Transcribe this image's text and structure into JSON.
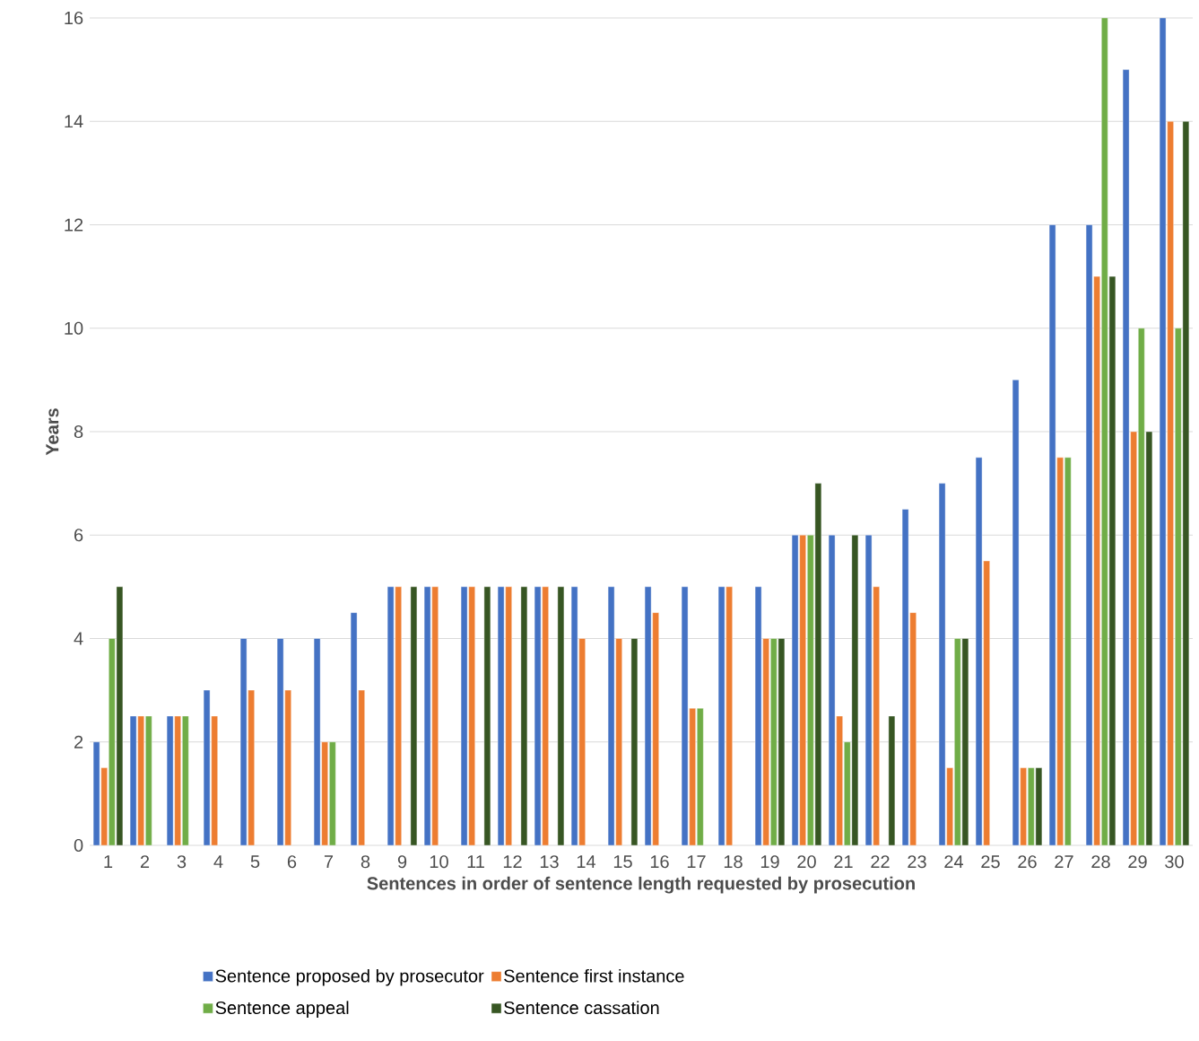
{
  "chart_data": {
    "type": "bar",
    "xlabel": "Sentences in order of  sentence length requested by prosecution",
    "ylabel": "Years",
    "categories": [
      "1",
      "2",
      "3",
      "4",
      "5",
      "6",
      "7",
      "8",
      "9",
      "10",
      "11",
      "12",
      "13",
      "14",
      "15",
      "16",
      "17",
      "18",
      "19",
      "20",
      "21",
      "22",
      "23",
      "24",
      "25",
      "26",
      "27",
      "28",
      "29",
      "30"
    ],
    "series": [
      {
        "name": "Sentence proposed by prosecutor",
        "color": "#4472c4",
        "values": [
          2,
          2.5,
          2.5,
          3,
          4,
          4,
          4,
          4.5,
          5,
          5,
          5,
          5,
          5,
          5,
          5,
          5,
          5,
          5,
          5,
          6,
          6,
          6,
          6.5,
          7,
          7.5,
          9,
          12,
          12,
          15,
          16
        ]
      },
      {
        "name": "Sentence first instance",
        "color": "#ed7d31",
        "values": [
          1.5,
          2.5,
          2.5,
          2.5,
          3,
          3,
          2,
          3,
          5,
          5,
          5,
          5,
          5,
          4,
          4,
          4.5,
          2.65,
          5,
          4,
          6,
          2.5,
          5,
          4.5,
          1.5,
          5.5,
          1.5,
          7.5,
          11,
          8,
          14
        ]
      },
      {
        "name": "Sentence appeal",
        "color": "#70ad47",
        "values": [
          4,
          2.5,
          2.5,
          null,
          null,
          null,
          2,
          null,
          null,
          null,
          null,
          null,
          null,
          null,
          null,
          null,
          2.65,
          null,
          4,
          6,
          2,
          null,
          null,
          4,
          null,
          1.5,
          7.5,
          16,
          10,
          10
        ]
      },
      {
        "name": "Sentence cassation",
        "color": "#375623",
        "values": [
          5,
          null,
          null,
          null,
          null,
          null,
          null,
          null,
          5,
          null,
          5,
          5,
          5,
          null,
          4,
          null,
          null,
          null,
          4,
          7,
          6,
          2.5,
          null,
          4,
          null,
          1.5,
          null,
          11,
          8,
          14
        ]
      }
    ],
    "ylim": [
      0,
      16
    ],
    "yticks": [
      0,
      2,
      4,
      6,
      8,
      10,
      12,
      14,
      16
    ],
    "grid": "y",
    "legend": "bottom"
  }
}
